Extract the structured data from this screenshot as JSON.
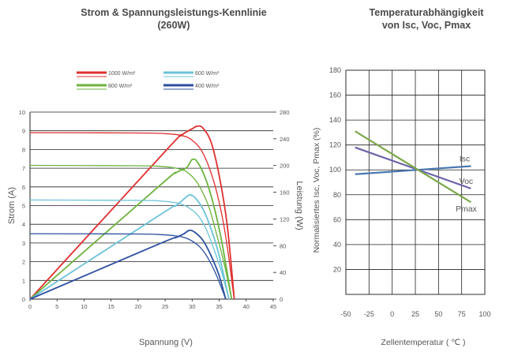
{
  "titles": {
    "left_line1": "Strom & Spannungsleistungs-Kennlinie",
    "left_line2": "(260W)",
    "right_line1": "Temperaturabhängigkeit",
    "right_line2": "von Isc, Voc, Pmax"
  },
  "colors": {
    "1000": "#e03030",
    "800": "#6cb33e",
    "600": "#6cc3d8",
    "400": "#2c4f9e",
    "isc": "#4a78b0",
    "voc": "#6a62a8",
    "pmax": "#7ba84a",
    "grid": "#222222",
    "axis_text": "#555555"
  },
  "chart_data": [
    {
      "type": "line",
      "title": "Strom & Spannungsleistungs-Kennlinie (260W)",
      "xlabel": "Spannung (V)",
      "ylabel": "Strom (A)",
      "y2label": "Leistung (W)",
      "xlim": [
        0,
        45
      ],
      "ylim": [
        0,
        10
      ],
      "y2lim": [
        0,
        280
      ],
      "xticks": [
        "0",
        "5",
        "10",
        "15",
        "20",
        "25",
        "30",
        "35",
        "40",
        "45"
      ],
      "yticks": [
        "0",
        "1",
        "2",
        "3",
        "4",
        "5",
        "6",
        "7",
        "8",
        "9",
        "10"
      ],
      "y2ticks": [
        "0",
        "40",
        "80",
        "120",
        "160",
        "200",
        "240",
        "280"
      ],
      "legend": [
        "1000 W/m²",
        "600 W/m²",
        "800 W/m²",
        "400 W/m²"
      ],
      "legend_position": "top",
      "grid": "horizontal",
      "series": [
        {
          "name": "1000 W/m²",
          "kind": "current",
          "irr": "1000",
          "x": [
            0,
            20,
            25,
            28,
            30,
            32,
            34,
            35.5,
            36.5,
            37.5,
            37.8
          ],
          "y": [
            8.9,
            8.88,
            8.85,
            8.75,
            8.5,
            7.8,
            6.3,
            4.5,
            2.8,
            0.6,
            0
          ]
        },
        {
          "name": "1000 W/m²",
          "kind": "power",
          "irr": "1000",
          "x": [
            0,
            25,
            28,
            30,
            31,
            32,
            33.5,
            35,
            36.5,
            37.8
          ],
          "y": [
            0,
            221,
            245,
            255,
            259,
            256,
            235,
            185,
            110,
            0
          ]
        },
        {
          "name": "800 W/m²",
          "kind": "current",
          "irr": "800",
          "x": [
            0,
            20,
            24,
            27,
            29,
            31,
            33,
            34.5,
            36,
            37.3
          ],
          "y": [
            7.15,
            7.13,
            7.1,
            7.0,
            6.8,
            6.2,
            5.0,
            3.5,
            1.8,
            0
          ]
        },
        {
          "name": "800 W/m²",
          "kind": "power",
          "irr": "800",
          "x": [
            0,
            24,
            27,
            29,
            30,
            31,
            32.5,
            34,
            35.5,
            37.3
          ],
          "y": [
            0,
            170,
            189,
            197,
            209,
            205,
            180,
            140,
            85,
            0
          ]
        },
        {
          "name": "600 W/m²",
          "kind": "current",
          "irr": "600",
          "x": [
            0,
            20,
            24,
            27,
            29,
            31,
            32.5,
            34,
            35.5,
            36.8
          ],
          "y": [
            5.3,
            5.28,
            5.25,
            5.15,
            4.95,
            4.5,
            3.8,
            2.7,
            1.4,
            0
          ]
        },
        {
          "name": "600 W/m²",
          "kind": "power",
          "irr": "600",
          "x": [
            0,
            24,
            27,
            28.5,
            29.5,
            30.5,
            32,
            33.5,
            35,
            36.8
          ],
          "y": [
            0,
            126,
            140,
            150,
            156,
            152,
            135,
            105,
            65,
            0
          ]
        },
        {
          "name": "400 W/m²",
          "kind": "current",
          "irr": "400",
          "x": [
            0,
            20,
            24,
            27,
            29,
            31,
            32.5,
            34,
            35.3,
            36.2
          ],
          "y": [
            3.5,
            3.48,
            3.45,
            3.38,
            3.25,
            2.9,
            2.4,
            1.6,
            0.7,
            0
          ]
        },
        {
          "name": "400 W/m²",
          "kind": "power",
          "irr": "400",
          "x": [
            0,
            24,
            27,
            28.5,
            29.5,
            30.5,
            32,
            33.5,
            35,
            36.2
          ],
          "y": [
            0,
            83,
            92,
            98,
            103,
            100,
            88,
            65,
            35,
            0
          ]
        }
      ]
    },
    {
      "type": "line",
      "title": "Temperaturabhängigkeit von Isc, Voc, Pmax",
      "xlabel": "Zellentemperatur ( ℃ )",
      "ylabel": "Normalisiertes Isc, Voc, Pmax (%)",
      "xlim": [
        -50,
        100
      ],
      "ylim": [
        0,
        180
      ],
      "xticks": [
        "-50",
        "-25",
        "0",
        "25",
        "50",
        "75",
        "100"
      ],
      "yticks": [
        "20",
        "40",
        "60",
        "80",
        "100",
        "120",
        "140",
        "160",
        "180"
      ],
      "grid": true,
      "series": [
        {
          "name": "Isc",
          "color_key": "isc",
          "x": [
            -40,
            85
          ],
          "y": [
            96.5,
            103
          ]
        },
        {
          "name": "Voc",
          "color_key": "voc",
          "x": [
            -40,
            85
          ],
          "y": [
            118,
            85
          ]
        },
        {
          "name": "Pmax",
          "color_key": "pmax",
          "x": [
            -40,
            85
          ],
          "y": [
            131,
            74
          ]
        }
      ]
    }
  ]
}
